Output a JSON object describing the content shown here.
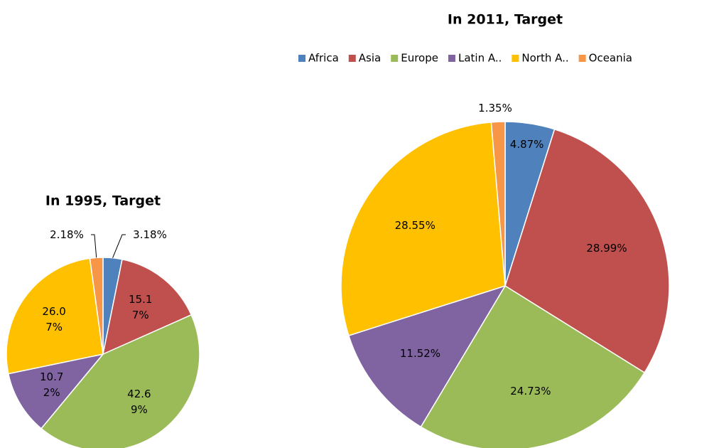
{
  "chart_data": [
    {
      "type": "pie",
      "title": "In 1995, Target",
      "values": [
        3.18,
        15.17,
        42.69,
        10.72,
        26.07,
        2.18
      ],
      "value_labels": [
        "3.18%",
        "15.17%",
        "42.69%",
        "10.72%",
        "26.07%",
        "2.18%"
      ],
      "colors": [
        "#4f81bd",
        "#c0504d",
        "#9bbb59",
        "#8064a2",
        "#ffc000",
        "#f79646"
      ]
    },
    {
      "type": "pie",
      "title": "In 2011, Target",
      "categories": [
        "Africa",
        "Asia",
        "Europe",
        "Latin A..",
        "North A..",
        "Oceania"
      ],
      "values": [
        4.87,
        28.99,
        24.73,
        11.52,
        28.55,
        1.35
      ],
      "value_labels": [
        "4.87%",
        "28.99%",
        "24.73%",
        "11.52%",
        "28.55%",
        "1.35%"
      ],
      "colors": [
        "#4f81bd",
        "#c0504d",
        "#9bbb59",
        "#8064a2",
        "#ffc000",
        "#f79646"
      ],
      "legend": "top"
    }
  ]
}
